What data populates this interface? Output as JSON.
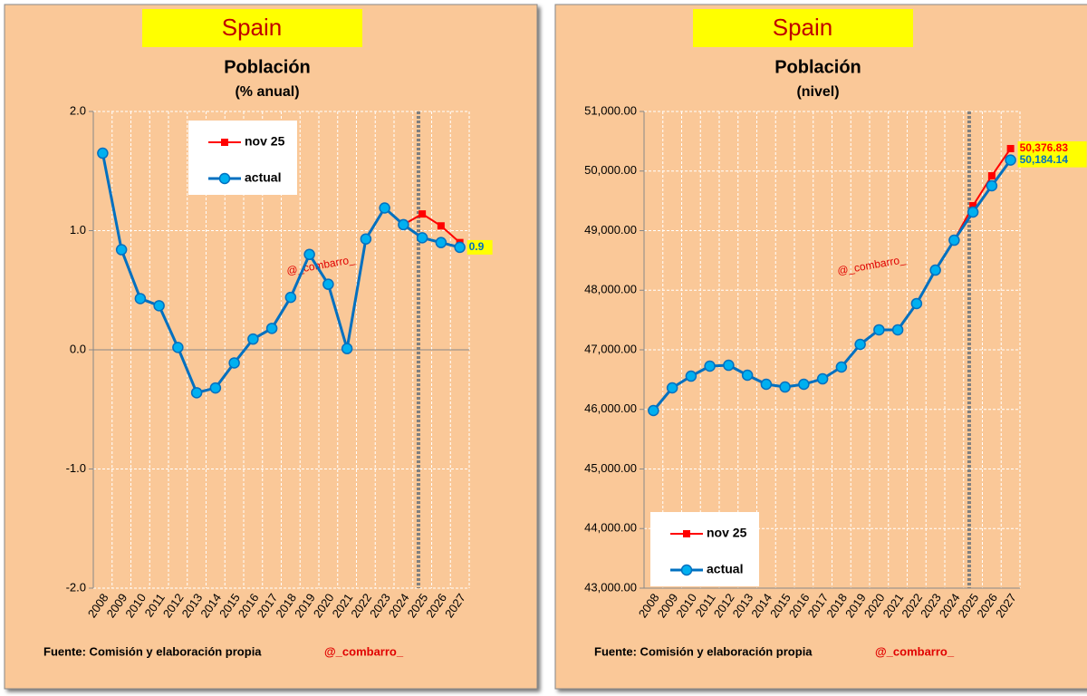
{
  "chart_data": [
    {
      "type": "line",
      "header": "Spain",
      "title": "Población",
      "subtitle": "(% anual)",
      "categories": [
        "2008",
        "2009",
        "2010",
        "2011",
        "2012",
        "2013",
        "2014",
        "2015",
        "2016",
        "2017",
        "2018",
        "2019",
        "2020",
        "2021",
        "2022",
        "2023",
        "2024",
        "2025",
        "2026",
        "2027"
      ],
      "series": [
        {
          "name": "nov 25",
          "color": "#ff0000",
          "values": [
            null,
            null,
            null,
            null,
            null,
            null,
            null,
            null,
            null,
            null,
            null,
            null,
            null,
            null,
            null,
            null,
            1.05,
            1.14,
            1.04,
            0.9
          ]
        },
        {
          "name": "actual",
          "color": "#0070c0",
          "values": [
            1.65,
            0.84,
            0.43,
            0.37,
            0.02,
            -0.36,
            -0.32,
            -0.11,
            0.09,
            0.18,
            0.44,
            0.8,
            0.55,
            0.01,
            0.93,
            1.19,
            1.05,
            0.94,
            0.9,
            0.86
          ],
          "value_labels": [
            null,
            null,
            null,
            null,
            null,
            null,
            null,
            null,
            null,
            null,
            null,
            null,
            null,
            null,
            null,
            null,
            null,
            null,
            null,
            "0.9"
          ]
        }
      ],
      "ylim": [
        -2,
        2
      ],
      "yticks": [
        {
          "value": -2,
          "label": "-2.0"
        },
        {
          "value": -1,
          "label": "-1.0"
        },
        {
          "value": 0,
          "label": "0.0"
        },
        {
          "value": 1,
          "label": "1.0"
        },
        {
          "value": 2,
          "label": "2.0"
        }
      ],
      "grid": true,
      "legend": "upper left",
      "watermark": "@_combarro_",
      "source": "Fuente: Comisión y elaboración propia",
      "credit": "@_combarro_"
    },
    {
      "type": "line",
      "header": "Spain",
      "title": "Población",
      "subtitle": "(nivel)",
      "categories": [
        "2008",
        "2009",
        "2010",
        "2011",
        "2012",
        "2013",
        "2014",
        "2015",
        "2016",
        "2017",
        "2018",
        "2019",
        "2020",
        "2021",
        "2022",
        "2023",
        "2024",
        "2025",
        "2026",
        "2027"
      ],
      "series": [
        {
          "name": "nov 25",
          "color": "#ff0000",
          "values": [
            null,
            null,
            null,
            null,
            null,
            null,
            null,
            null,
            null,
            null,
            null,
            null,
            null,
            null,
            null,
            null,
            48840,
            49418,
            49920,
            50376.83
          ],
          "value_labels": [
            null,
            null,
            null,
            null,
            null,
            null,
            null,
            null,
            null,
            null,
            null,
            null,
            null,
            null,
            null,
            null,
            null,
            null,
            null,
            "50,376.83"
          ]
        },
        {
          "name": "actual",
          "color": "#0070c0",
          "values": [
            45981,
            46361,
            46558,
            46726,
            46741,
            46574,
            46422,
            46376,
            46422,
            46513,
            46711,
            47091,
            47335,
            47335,
            47776,
            48338,
            48840,
            49312,
            49753,
            50184.14
          ],
          "value_labels": [
            null,
            null,
            null,
            null,
            null,
            null,
            null,
            null,
            null,
            null,
            null,
            null,
            null,
            null,
            null,
            null,
            null,
            null,
            null,
            "50,184.14"
          ]
        }
      ],
      "ylim": [
        43000,
        51000
      ],
      "yticks": [
        {
          "value": 43000,
          "label": "43,000.00"
        },
        {
          "value": 44000,
          "label": "44,000.00"
        },
        {
          "value": 45000,
          "label": "45,000.00"
        },
        {
          "value": 46000,
          "label": "46,000.00"
        },
        {
          "value": 47000,
          "label": "47,000.00"
        },
        {
          "value": 48000,
          "label": "48,000.00"
        },
        {
          "value": 49000,
          "label": "49,000.00"
        },
        {
          "value": 50000,
          "label": "50,000.00"
        },
        {
          "value": 51000,
          "label": "51,000.00"
        }
      ],
      "grid": true,
      "legend": "lower left",
      "watermark": "@_combarro_",
      "source": "Fuente: Comisión y elaboración propia",
      "credit": "@_combarro_"
    }
  ]
}
